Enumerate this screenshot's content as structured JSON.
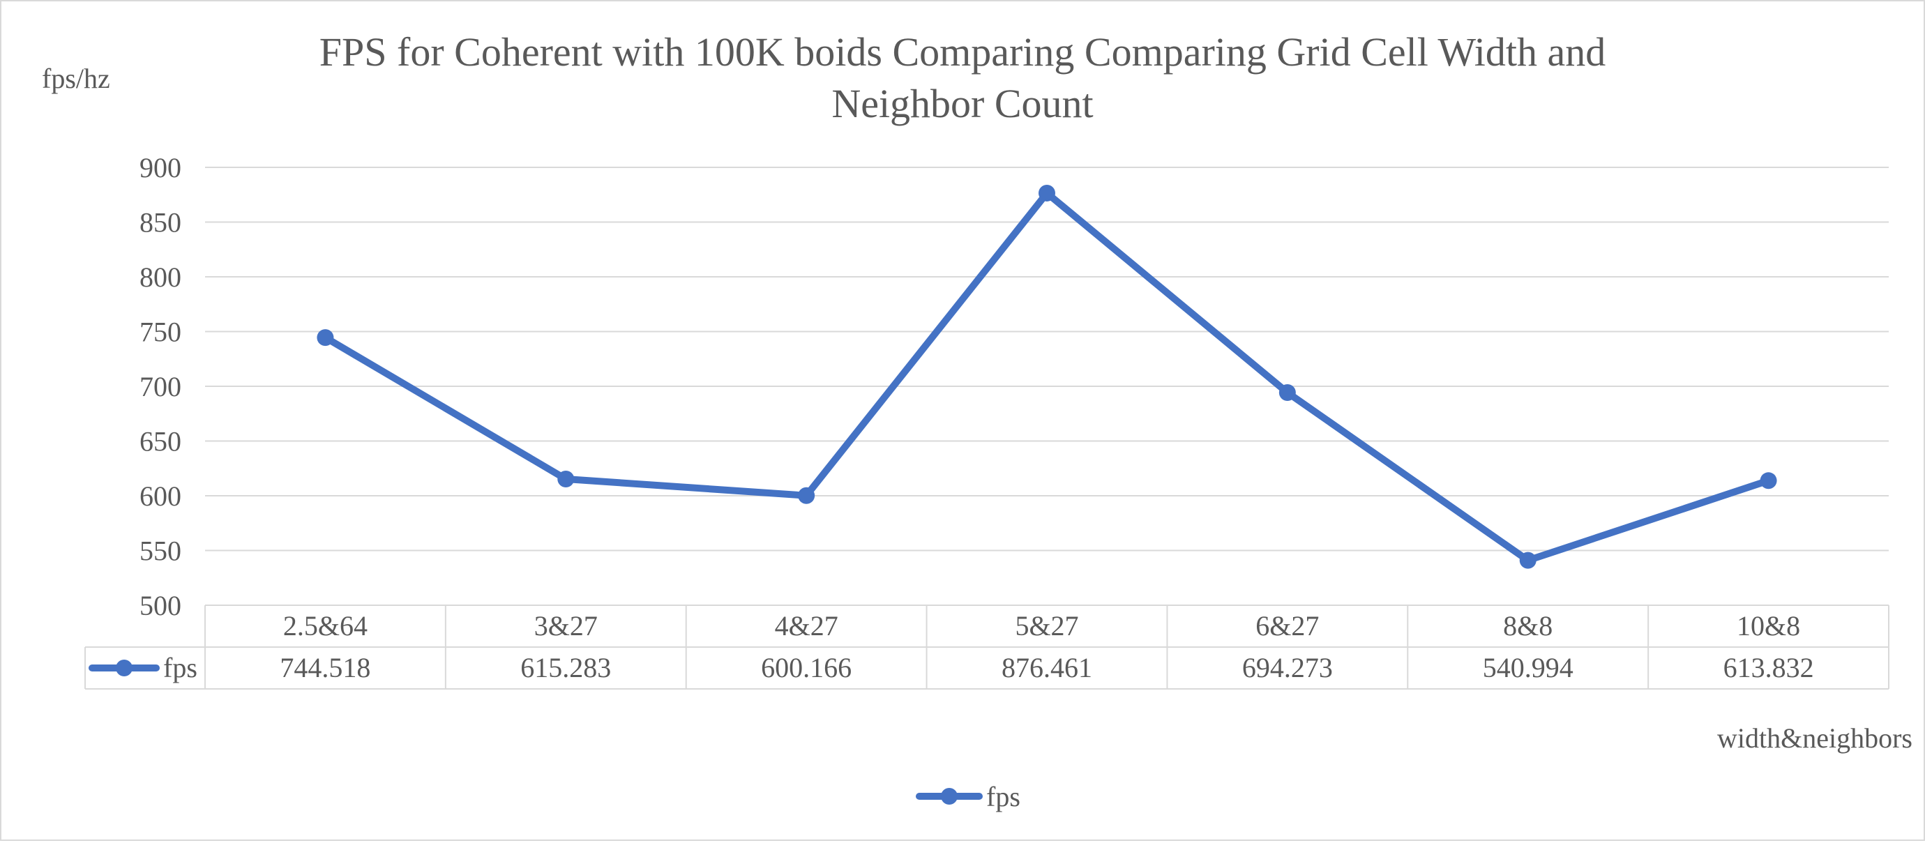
{
  "chart_data": {
    "type": "line",
    "title_line1": "FPS for Coherent with 100K boids Comparing Comparing Grid Cell Width and",
    "title_line2": "Neighbor Count",
    "ylabel": "fps/hz",
    "xlabel": "width&neighbors",
    "categories": [
      "2.5&64",
      "3&27",
      "4&27",
      "5&27",
      "6&27",
      "8&8",
      "10&8"
    ],
    "series": [
      {
        "name": "fps",
        "values": [
          744.518,
          615.283,
          600.166,
          876.461,
          694.273,
          540.994,
          613.832
        ],
        "value_labels": [
          "744.518",
          "615.283",
          "600.166",
          "876.461",
          "694.273",
          "540.994",
          "613.832"
        ]
      }
    ],
    "ylim": [
      500,
      900
    ],
    "yticks": [
      500,
      550,
      600,
      650,
      700,
      750,
      800,
      850,
      900
    ],
    "grid": true,
    "data_table": true,
    "legend_position": "bottom",
    "line_color": "#4472c4",
    "grid_color": "#d9d9d9",
    "text_color": "#595959"
  }
}
